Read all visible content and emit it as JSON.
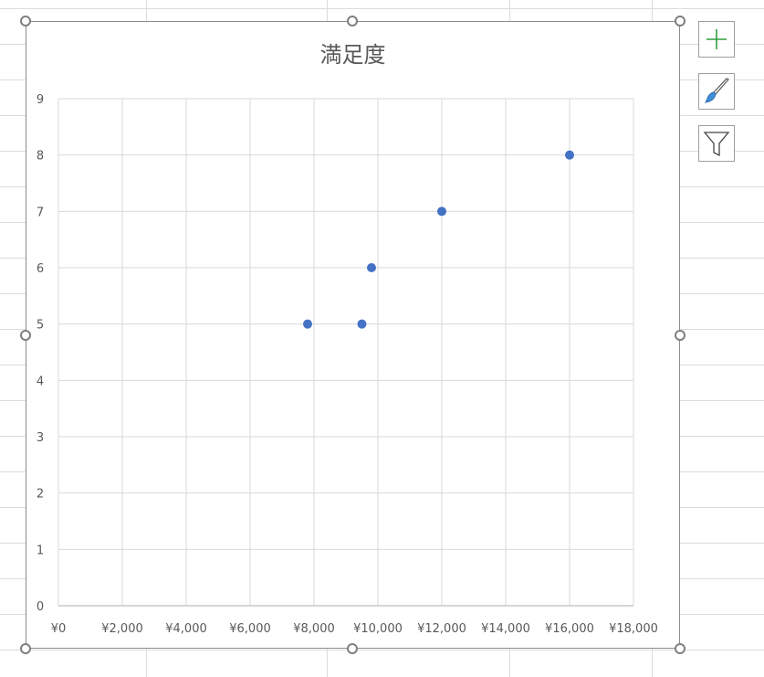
{
  "chart_data": {
    "type": "scatter",
    "title": "満足度",
    "xlabel": "",
    "ylabel": "",
    "xlim": [
      0,
      18000
    ],
    "ylim": [
      0,
      9
    ],
    "x_ticks": [
      "¥0",
      "¥2,000",
      "¥4,000",
      "¥6,000",
      "¥8,000",
      "¥10,000",
      "¥12,000",
      "¥14,000",
      "¥16,000",
      "¥18,000"
    ],
    "y_ticks": [
      "0",
      "1",
      "2",
      "3",
      "4",
      "5",
      "6",
      "7",
      "8",
      "9"
    ],
    "grid": true,
    "legend": "none",
    "series": [
      {
        "color": "#4472c4",
        "points": [
          {
            "x": 7800,
            "y": 5
          },
          {
            "x": 9500,
            "y": 5
          },
          {
            "x": 9800,
            "y": 6
          },
          {
            "x": 12000,
            "y": 7
          },
          {
            "x": 16000,
            "y": 8
          }
        ]
      }
    ]
  },
  "side_buttons": [
    {
      "icon": "plus-icon",
      "color": "#2e9e3e"
    },
    {
      "icon": "paintbrush-icon",
      "color": "#3f8fd6"
    },
    {
      "icon": "filter-icon",
      "color": "#444444"
    }
  ]
}
